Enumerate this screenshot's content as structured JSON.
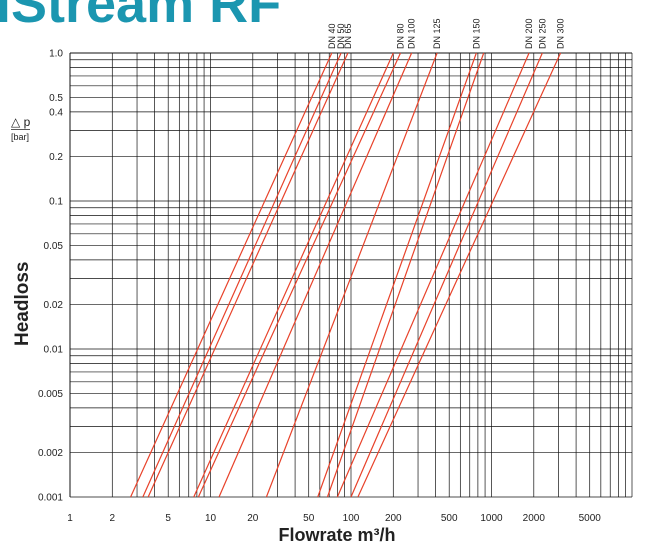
{
  "header": {
    "title": "iStream RF"
  },
  "chart_data": {
    "type": "line",
    "title": "iStream RF",
    "xlabel": "Flowrate m³/h",
    "ylabel": "Headloss",
    "y_unit_symbol": "△ p",
    "y_unit": "[bar]",
    "x_scale": "log",
    "y_scale": "log",
    "xlim": [
      1,
      10000
    ],
    "ylim": [
      0.001,
      1.0
    ],
    "x_ticks": [
      1,
      2,
      5,
      10,
      20,
      50,
      100,
      200,
      500,
      1000,
      2000,
      5000
    ],
    "y_ticks": [
      0.001,
      0.002,
      0.005,
      0.01,
      0.02,
      0.05,
      0.1,
      0.2,
      0.4,
      0.5,
      1.0
    ],
    "x_tick_labels": [
      "1",
      "2",
      "5",
      "10",
      "20",
      "50",
      "100",
      "200",
      "500",
      "1000",
      "2000",
      "5000"
    ],
    "y_tick_labels": [
      "0.001",
      "0.002",
      "0.005",
      "0.01",
      "0.02",
      "0.05",
      "0.1",
      "0.2",
      "0.4",
      "0.5",
      "1.0"
    ],
    "grid": true,
    "line_color": "#e8422a",
    "series": [
      {
        "name": "DN 40",
        "x": [
          2.7,
          73
        ],
        "y": [
          0.001,
          1.0
        ]
      },
      {
        "name": "DN 50",
        "x": [
          3.3,
          85
        ],
        "y": [
          0.001,
          1.0
        ]
      },
      {
        "name": "DN 65",
        "x": [
          3.6,
          95
        ],
        "y": [
          0.001,
          1.0
        ]
      },
      {
        "name": "",
        "x": [
          7.6,
          200
        ],
        "y": [
          0.001,
          1.0
        ]
      },
      {
        "name": "DN 80",
        "x": [
          8.2,
          225
        ],
        "y": [
          0.001,
          1.0
        ]
      },
      {
        "name": "DN 100",
        "x": [
          11.5,
          270
        ],
        "y": [
          0.001,
          1.0
        ]
      },
      {
        "name": "DN 125",
        "x": [
          25,
          410
        ],
        "y": [
          0.001,
          1.0
        ]
      },
      {
        "name": "DN 150",
        "x": [
          58,
          780
        ],
        "y": [
          0.001,
          1.0
        ]
      },
      {
        "name": "",
        "x": [
          68,
          880
        ],
        "y": [
          0.001,
          1.0
        ]
      },
      {
        "name": "DN 200",
        "x": [
          80,
          1850
        ],
        "y": [
          0.001,
          1.0
        ]
      },
      {
        "name": "DN 250",
        "x": [
          100,
          2300
        ],
        "y": [
          0.001,
          1.0
        ]
      },
      {
        "name": "DN 300",
        "x": [
          112,
          3100
        ],
        "y": [
          0.001,
          1.0
        ]
      }
    ]
  }
}
